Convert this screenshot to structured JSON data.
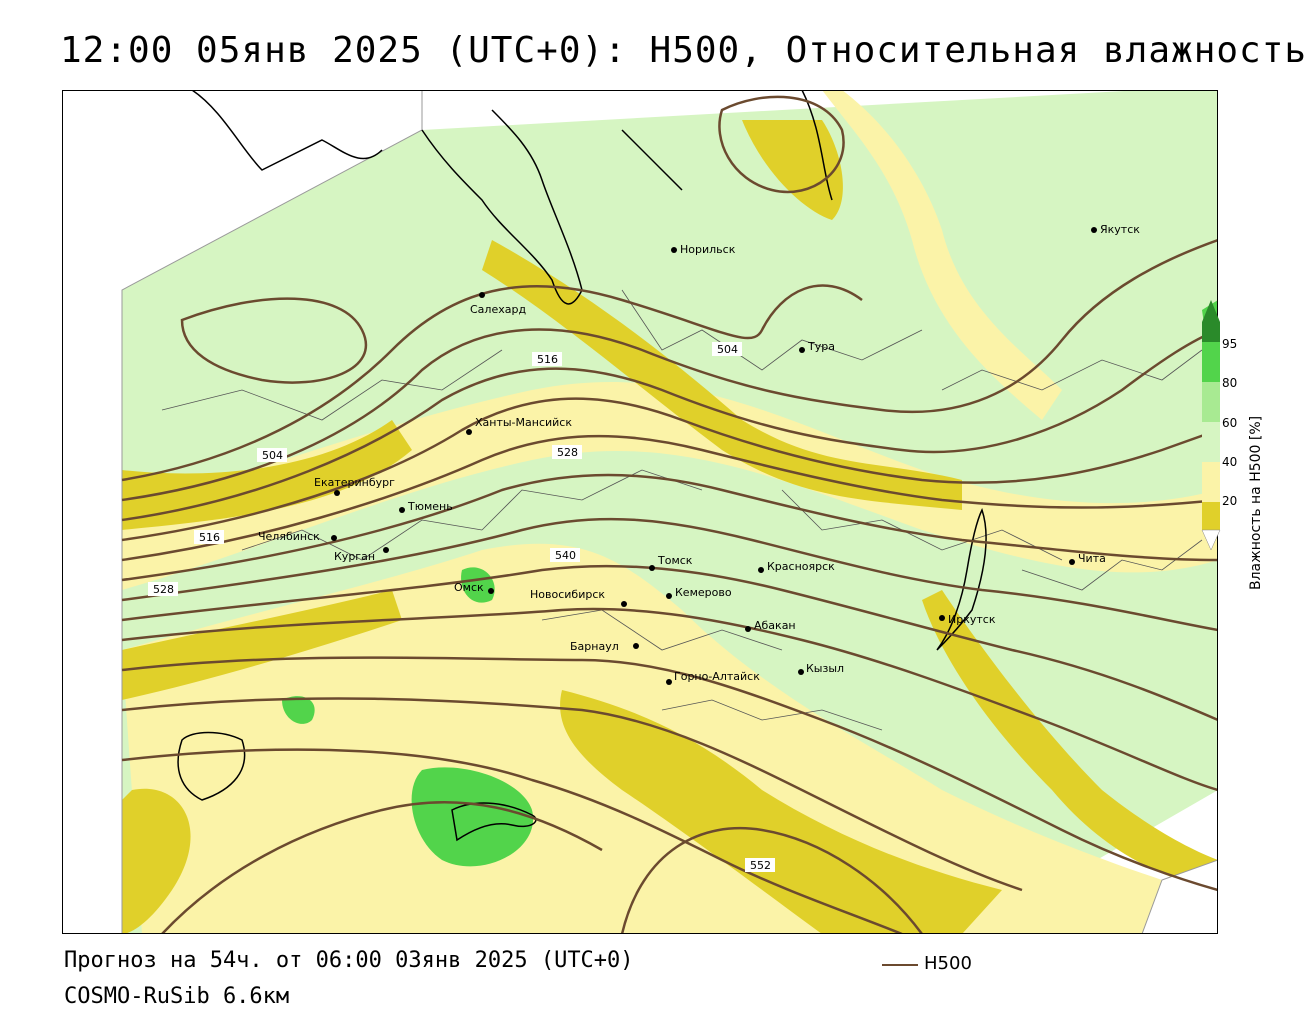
{
  "title": "12:00 05янв 2025 (UTC+0): H500, Относительная влажность",
  "footer": {
    "forecast": "Прогноз на 54ч. от 06:00 03янв 2025 (UTC+0)",
    "model": "COSMO-RuSib 6.6км"
  },
  "legend": {
    "line_label": "H500",
    "line_color": "#6b4a2f"
  },
  "colorbar": {
    "label": "Влажность на H500 [%]",
    "ticks": [
      "20",
      "40",
      "60",
      "80",
      "95"
    ],
    "colors": [
      "#ffffff",
      "#e0d02a",
      "#fbf3a8",
      "#ffffff",
      "#d6f5c2",
      "#a8ea92",
      "#52d44b",
      "#2a8a2a"
    ]
  },
  "contour_labels": [
    "504",
    "516",
    "528",
    "504",
    "516",
    "528",
    "540",
    "552"
  ],
  "cities": [
    {
      "name": "Якутск"
    },
    {
      "name": "Норильск"
    },
    {
      "name": "Салехард"
    },
    {
      "name": "Тура"
    },
    {
      "name": "Ханты-Мансийск"
    },
    {
      "name": "Екатеринбург"
    },
    {
      "name": "Тюмень"
    },
    {
      "name": "Челябинск"
    },
    {
      "name": "Курган"
    },
    {
      "name": "Омск"
    },
    {
      "name": "Новосибирск"
    },
    {
      "name": "Томск"
    },
    {
      "name": "Кемерово"
    },
    {
      "name": "Красноярск"
    },
    {
      "name": "Барнаул"
    },
    {
      "name": "Абакан"
    },
    {
      "name": "Горно-Алтайск"
    },
    {
      "name": "Кызыл"
    },
    {
      "name": "Иркутск"
    },
    {
      "name": "Чита"
    }
  ]
}
